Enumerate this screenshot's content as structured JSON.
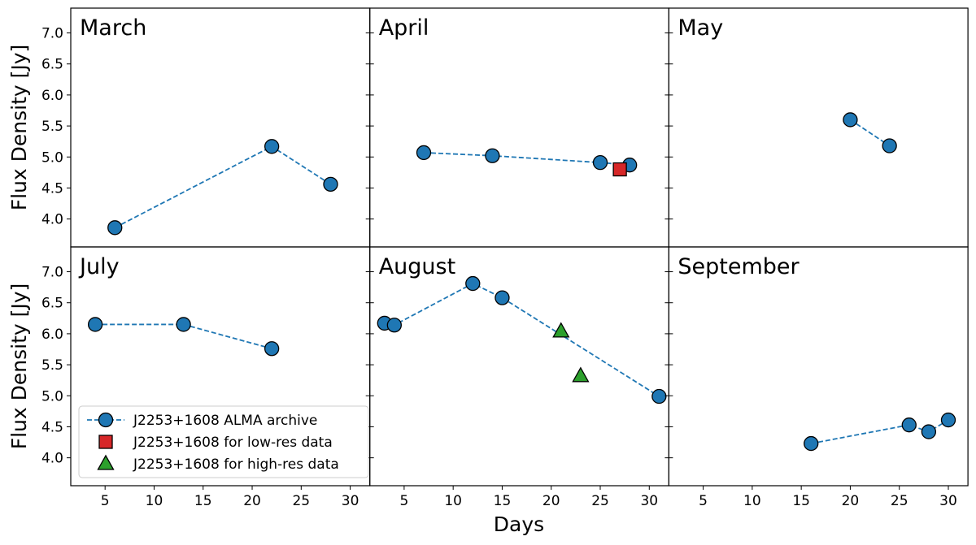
{
  "chart_data": {
    "type": "scatter",
    "xlabel": "Days",
    "ylabel": "Flux Density [Jy]",
    "xlim": [
      1.5,
      32
    ],
    "ylim": [
      3.55,
      7.4
    ],
    "xticks": [
      5,
      10,
      15,
      20,
      25,
      30
    ],
    "yticks": [
      4.0,
      4.5,
      5.0,
      5.5,
      6.0,
      6.5,
      7.0
    ],
    "legend": {
      "placement": "lower-left",
      "panel": "July",
      "entries": [
        {
          "label": "J2253+1608 ALMA archive",
          "series": "archive"
        },
        {
          "label": "J2253+1608 for low-res data",
          "series": "low_res"
        },
        {
          "label": "J2253+1608 for high-res data",
          "series": "high_res"
        }
      ]
    },
    "styles": {
      "archive": {
        "marker": "circle",
        "color": "#1f77b4",
        "line": "dashed"
      },
      "low_res": {
        "marker": "square",
        "color": "#d62728"
      },
      "high_res": {
        "marker": "triangle",
        "color": "#2ca02c"
      }
    },
    "panels": [
      {
        "title": "March",
        "archive": [
          [
            6,
            3.86
          ],
          [
            22,
            5.17
          ],
          [
            28,
            4.56
          ]
        ],
        "low_res": [],
        "high_res": []
      },
      {
        "title": "April",
        "archive": [
          [
            7,
            5.07
          ],
          [
            14,
            5.02
          ],
          [
            25,
            4.91
          ],
          [
            28,
            4.87
          ]
        ],
        "low_res": [
          [
            27,
            4.8
          ]
        ],
        "high_res": []
      },
      {
        "title": "May",
        "archive": [
          [
            20,
            5.6
          ],
          [
            24,
            5.18
          ]
        ],
        "low_res": [],
        "high_res": []
      },
      {
        "title": "July",
        "archive": [
          [
            4,
            6.15
          ],
          [
            13,
            6.15
          ],
          [
            22,
            5.76
          ]
        ],
        "low_res": [],
        "high_res": []
      },
      {
        "title": "August",
        "archive": [
          [
            3,
            6.17
          ],
          [
            4,
            6.14
          ],
          [
            12,
            6.81
          ],
          [
            15,
            6.58
          ],
          [
            31,
            4.99
          ]
        ],
        "low_res": [],
        "high_res": [
          [
            21,
            6.04
          ],
          [
            23,
            5.32
          ]
        ]
      },
      {
        "title": "September",
        "archive": [
          [
            16,
            4.23
          ],
          [
            26,
            4.53
          ],
          [
            28,
            4.42
          ],
          [
            30,
            4.61
          ]
        ],
        "low_res": [],
        "high_res": []
      }
    ]
  }
}
